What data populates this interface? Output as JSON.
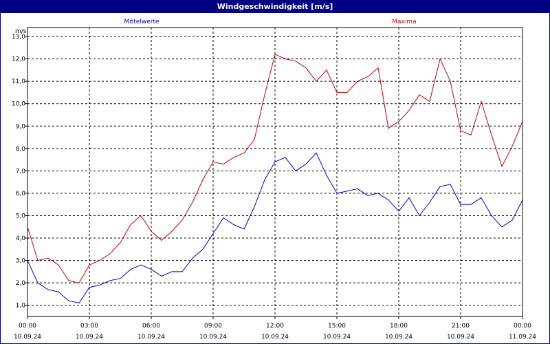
{
  "window": {
    "title": "Windgeschwindigkeit [m/s]"
  },
  "chart_data": {
    "type": "line",
    "title": "Windgeschwindigkeit [m/s]",
    "ylabel": "m/s",
    "ylim": [
      0.5,
      13.4
    ],
    "xlim": [
      0,
      24
    ],
    "grid": true,
    "yticks": [
      1,
      2,
      3,
      4,
      5,
      6,
      7,
      8,
      9,
      10,
      11,
      12,
      13
    ],
    "ytick_labels": [
      "1,0",
      "2,0",
      "3,0",
      "4,0",
      "5,0",
      "6,0",
      "7,0",
      "8,0",
      "9,0",
      "10,0",
      "11,0",
      "12,0",
      "13,0"
    ],
    "xticks": [
      {
        "hours": 0,
        "time": "00:00",
        "date": "10.09.24"
      },
      {
        "hours": 3,
        "time": "03:00",
        "date": "10.09.24"
      },
      {
        "hours": 6,
        "time": "06:00",
        "date": "10.09.24"
      },
      {
        "hours": 9,
        "time": "09:00",
        "date": "10.09.24"
      },
      {
        "hours": 12,
        "time": "12:00",
        "date": "10.09.24"
      },
      {
        "hours": 15,
        "time": "15:00",
        "date": "10.09.24"
      },
      {
        "hours": 18,
        "time": "18:00",
        "date": "10.09.24"
      },
      {
        "hours": 21,
        "time": "21:00",
        "date": "10.09.24"
      },
      {
        "hours": 24,
        "time": "00:00",
        "date": "11.09.24"
      }
    ],
    "x": [
      0,
      0.5,
      1,
      1.5,
      2,
      2.5,
      3,
      3.5,
      4,
      4.5,
      5,
      5.5,
      6,
      6.5,
      7,
      7.5,
      8,
      8.5,
      9,
      9.5,
      10,
      10.5,
      11,
      11.5,
      12,
      12.5,
      13,
      13.5,
      14,
      14.5,
      15,
      15.5,
      16,
      16.5,
      17,
      17.5,
      18,
      18.5,
      19,
      19.5,
      20,
      20.5,
      21,
      21.5,
      22,
      22.5,
      23,
      23.5,
      24
    ],
    "series": [
      {
        "name": "Mittelwerte",
        "color": "#0000c0",
        "values": [
          3.0,
          2.0,
          1.7,
          1.6,
          1.2,
          1.1,
          1.8,
          1.9,
          2.1,
          2.2,
          2.6,
          2.8,
          2.6,
          2.3,
          2.5,
          2.5,
          3.1,
          3.5,
          4.2,
          4.9,
          4.6,
          4.4,
          5.4,
          6.6,
          7.4,
          7.6,
          7.0,
          7.3,
          7.8,
          6.8,
          6.0,
          6.1,
          6.2,
          5.9,
          6.0,
          5.7,
          5.2,
          5.8,
          5.0,
          5.6,
          6.3,
          6.4,
          5.5,
          5.5,
          5.8,
          5.0,
          4.5,
          4.8,
          5.7
        ]
      },
      {
        "name": "Maxima",
        "color": "#c00000",
        "values": [
          4.5,
          3.0,
          3.1,
          2.8,
          2.1,
          2.0,
          2.8,
          3.0,
          3.3,
          3.8,
          4.6,
          5.0,
          4.3,
          3.9,
          4.3,
          4.8,
          5.6,
          6.6,
          7.4,
          7.3,
          7.6,
          7.8,
          8.4,
          10.4,
          12.2,
          12.0,
          11.9,
          11.6,
          11.0,
          11.5,
          10.5,
          10.5,
          11.0,
          11.2,
          11.6,
          8.9,
          9.2,
          9.7,
          10.4,
          10.1,
          12.0,
          11.0,
          8.8,
          8.6,
          10.1,
          8.6,
          7.2,
          8.1,
          9.2
        ]
      }
    ]
  }
}
